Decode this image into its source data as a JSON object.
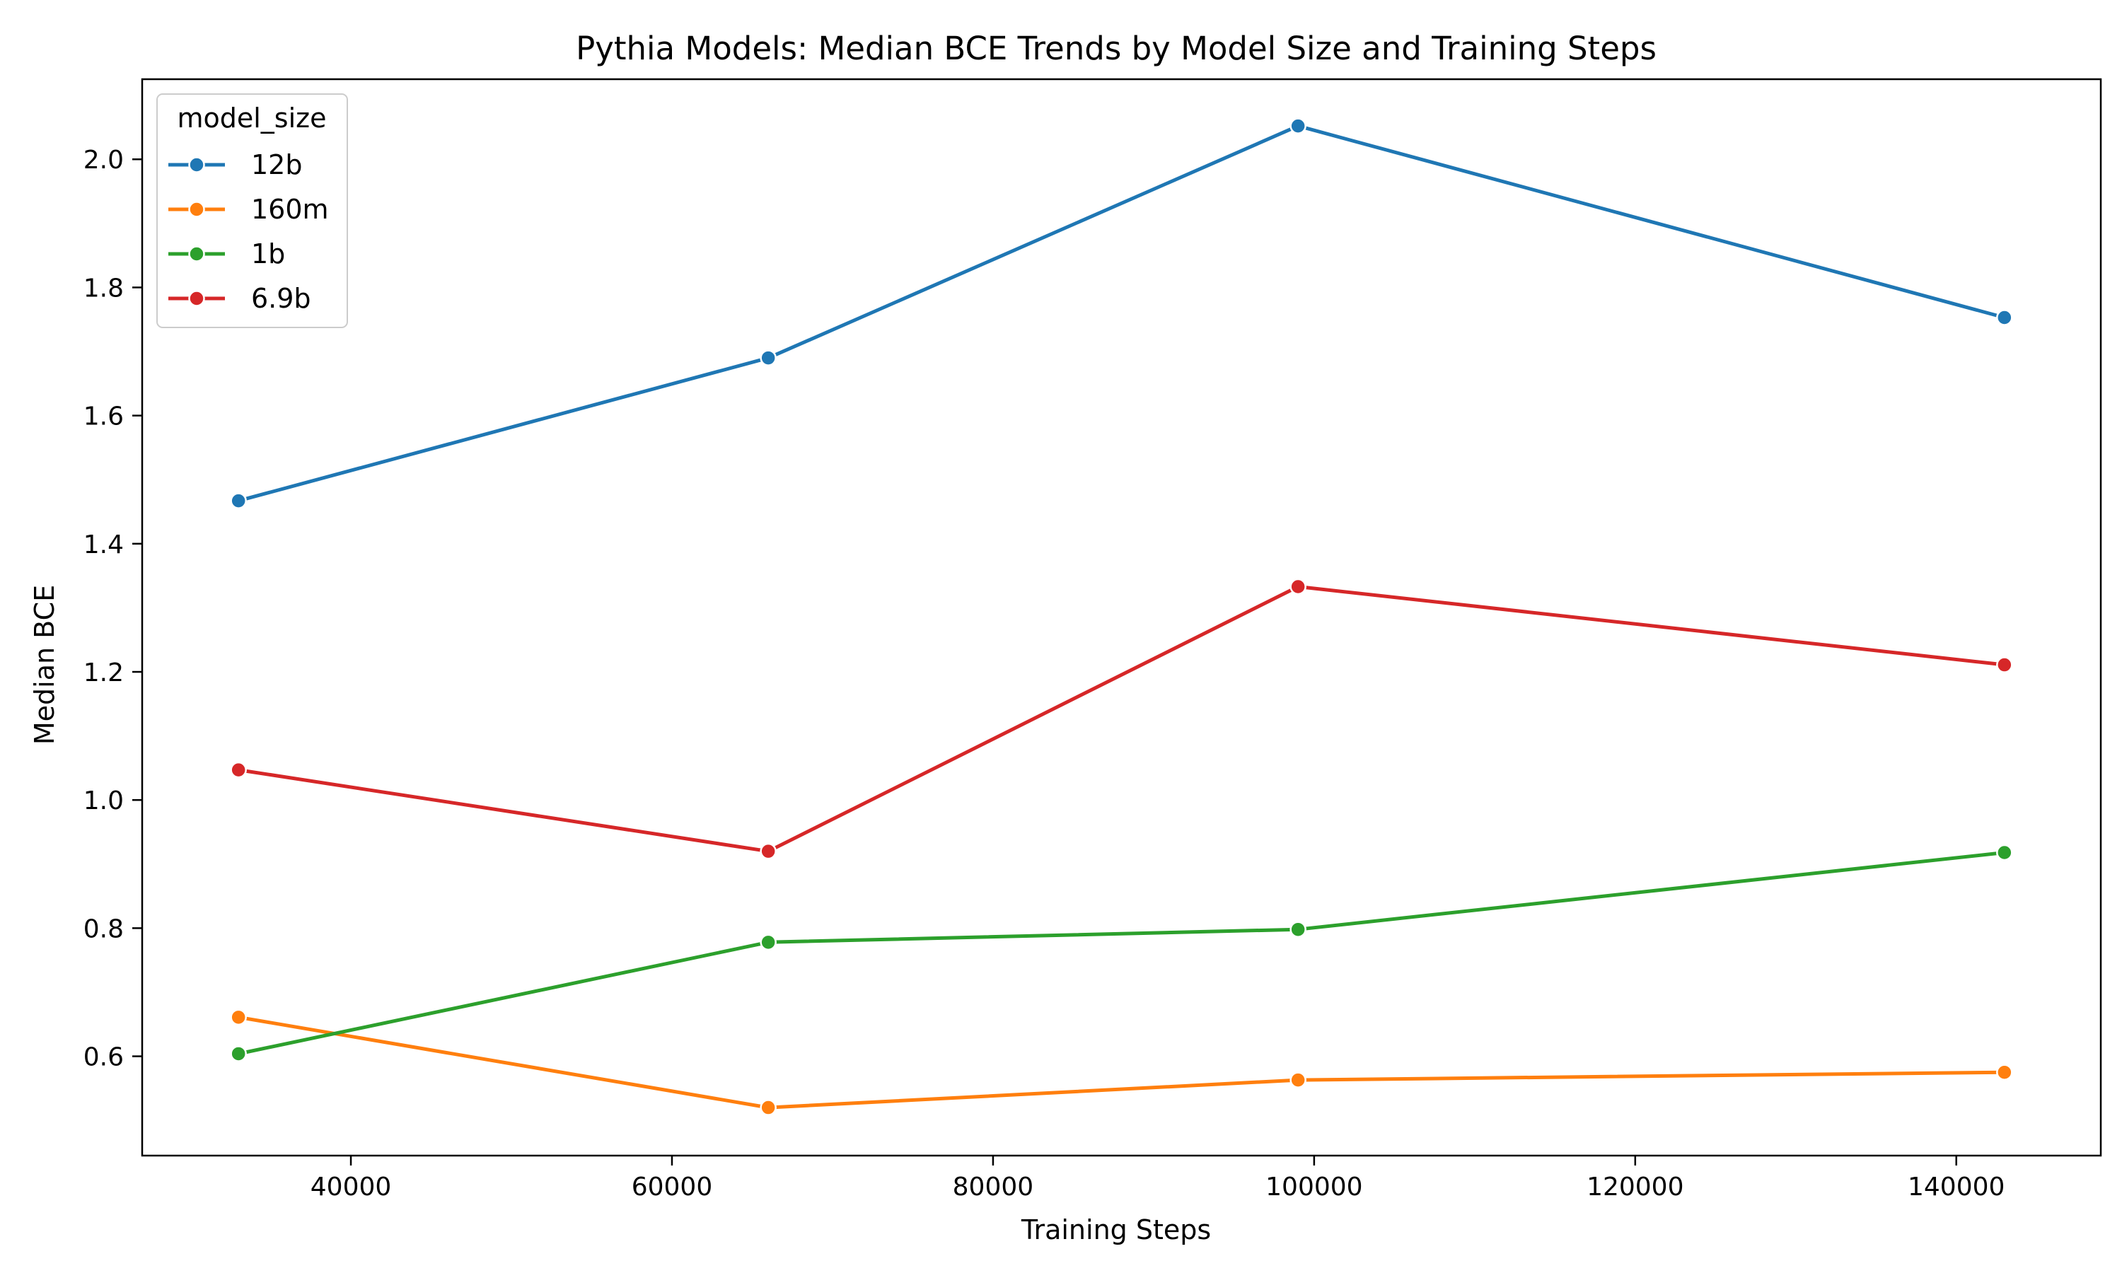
{
  "chart_data": {
    "type": "line",
    "title": "Pythia Models: Median BCE Trends by Model Size and Training Steps",
    "xlabel": "Training Steps",
    "ylabel": "Median BCE",
    "xlim": [
      27000,
      149000
    ],
    "ylim": [
      0.445,
      2.125
    ],
    "x_ticks": [
      40000,
      60000,
      80000,
      100000,
      120000,
      140000
    ],
    "y_ticks": [
      0.6,
      0.8,
      1.0,
      1.2,
      1.4,
      1.6,
      1.8,
      2.0
    ],
    "y_tick_labels": [
      "0.6",
      "0.8",
      "1.0",
      "1.2",
      "1.4",
      "1.6",
      "1.8",
      "2.0"
    ],
    "grid": false,
    "legend": {
      "title": "model_size",
      "placement": "top-left"
    },
    "x": [
      33000,
      66000,
      99000,
      143000
    ],
    "series": [
      {
        "name": "12b",
        "color": "#1f77b4",
        "values": [
          1.467,
          1.69,
          2.052,
          1.753
        ]
      },
      {
        "name": "160m",
        "color": "#ff7f0e",
        "values": [
          0.661,
          0.52,
          0.563,
          0.575
        ]
      },
      {
        "name": "1b",
        "color": "#2ca02c",
        "values": [
          0.604,
          0.778,
          0.798,
          0.918
        ]
      },
      {
        "name": "6.9b",
        "color": "#d62728",
        "values": [
          1.047,
          0.92,
          1.333,
          1.211
        ]
      }
    ]
  }
}
